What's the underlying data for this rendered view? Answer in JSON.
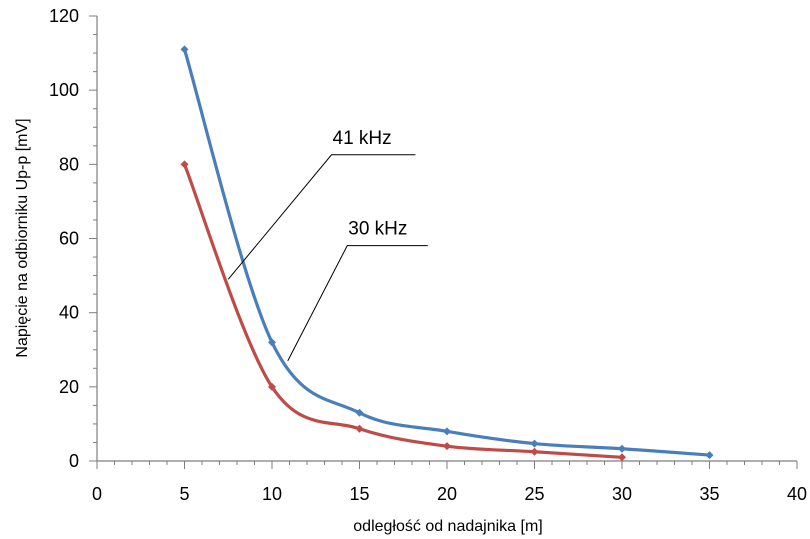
{
  "chart_data": {
    "type": "line",
    "title": "",
    "xlabel": "odległość od nadajnika [m]",
    "ylabel": "Napięcie na odbiorniku Up-p [mV]",
    "xlim": [
      0,
      40
    ],
    "ylim": [
      0,
      120
    ],
    "x_ticks": [
      0,
      5,
      10,
      15,
      20,
      25,
      30,
      35,
      40
    ],
    "x_minor_step": 1,
    "y_ticks": [
      0,
      20,
      40,
      60,
      80,
      100,
      120
    ],
    "y_minor_step": 5,
    "grid": false,
    "legend": "none",
    "smooth": true,
    "series": [
      {
        "name": "41 kHz",
        "color": "#4a7ebb",
        "marker": "diamond",
        "x": [
          5,
          10,
          15,
          20,
          25,
          30,
          35
        ],
        "y": [
          111,
          32,
          13,
          8,
          4.7,
          3.3,
          1.6
        ]
      },
      {
        "name": "30 kHz",
        "color": "#be4b48",
        "marker": "diamond",
        "x": [
          5,
          10,
          15,
          20,
          25,
          30
        ],
        "y": [
          80,
          20,
          8.7,
          4,
          2.5,
          1
        ]
      }
    ],
    "annotations": [
      {
        "text": "41 kHz",
        "series": "41 kHz",
        "label_at": [
          13.4,
          85
        ],
        "shelf_to": [
          18.2,
          84.5
        ],
        "pointer_to": [
          7.5,
          49
        ]
      },
      {
        "text": "30 kHz",
        "series": "30 kHz",
        "label_at": [
          14.3,
          60.5
        ],
        "shelf_to": [
          18.9,
          59.5
        ],
        "pointer_to": [
          10.9,
          27
        ]
      }
    ]
  }
}
